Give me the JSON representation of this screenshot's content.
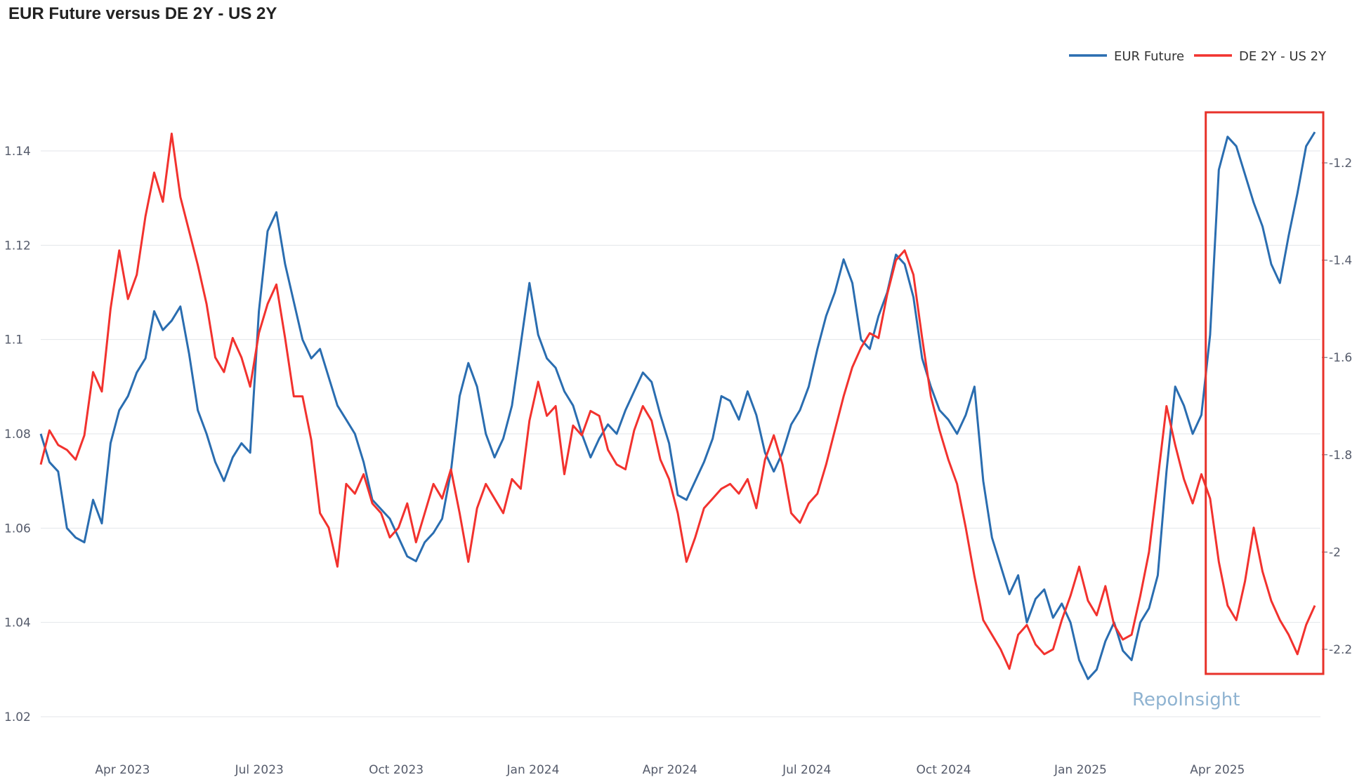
{
  "chart_data": {
    "type": "line",
    "title": "EUR Future versus DE 2Y - US 2Y",
    "xlabel": "",
    "x_ticks": [
      "Apr 2023",
      "Jul 2023",
      "Oct 2023",
      "Jan 2024",
      "Apr 2024",
      "Jul 2024",
      "Oct 2024",
      "Jan 2025",
      "Apr 2025"
    ],
    "x_range": [
      0,
      28.0
    ],
    "y_left": {
      "label": "",
      "range": [
        1.02,
        1.14
      ],
      "ticks": [
        "1.02",
        "1.04",
        "1.06",
        "1.08",
        "1.1",
        "1.12",
        "1.14"
      ]
    },
    "y_right": {
      "label": "",
      "range": [
        -2.2,
        -1.2
      ],
      "ticks": [
        "-2.2",
        "-2",
        "-1.8",
        "-1.6",
        "-1.4",
        "-1.2"
      ]
    },
    "grid": true,
    "legend": "top-right",
    "watermark": "RepoInsight",
    "highlight_box": {
      "x_from": 25.5,
      "x_to": 28.0,
      "y_right_from": -2.0,
      "y_right_to": -1.1,
      "color": "#e8322a"
    },
    "series": [
      {
        "name": "EUR Future",
        "axis": "left",
        "color": "#2a6db0",
        "points": [
          [
            0,
            1.08
          ],
          [
            0.2,
            1.074
          ],
          [
            0.4,
            1.072
          ],
          [
            0.6,
            1.06
          ],
          [
            0.8,
            1.058
          ],
          [
            1.0,
            1.057
          ],
          [
            1.2,
            1.066
          ],
          [
            1.4,
            1.061
          ],
          [
            1.6,
            1.078
          ],
          [
            1.8,
            1.085
          ],
          [
            2.0,
            1.088
          ],
          [
            2.2,
            1.093
          ],
          [
            2.4,
            1.096
          ],
          [
            2.6,
            1.106
          ],
          [
            2.8,
            1.102
          ],
          [
            3.0,
            1.104
          ],
          [
            3.2,
            1.107
          ],
          [
            3.4,
            1.097
          ],
          [
            3.6,
            1.085
          ],
          [
            3.8,
            1.08
          ],
          [
            4.0,
            1.074
          ],
          [
            4.2,
            1.07
          ],
          [
            4.4,
            1.075
          ],
          [
            4.6,
            1.078
          ],
          [
            4.8,
            1.076
          ],
          [
            5.0,
            1.106
          ],
          [
            5.2,
            1.123
          ],
          [
            5.4,
            1.127
          ],
          [
            5.6,
            1.116
          ],
          [
            5.8,
            1.108
          ],
          [
            6.0,
            1.1
          ],
          [
            6.2,
            1.096
          ],
          [
            6.4,
            1.098
          ],
          [
            6.6,
            1.092
          ],
          [
            6.8,
            1.086
          ],
          [
            7.0,
            1.083
          ],
          [
            7.2,
            1.08
          ],
          [
            7.4,
            1.074
          ],
          [
            7.6,
            1.066
          ],
          [
            7.8,
            1.064
          ],
          [
            8.0,
            1.062
          ],
          [
            8.2,
            1.058
          ],
          [
            8.4,
            1.054
          ],
          [
            8.6,
            1.053
          ],
          [
            8.8,
            1.057
          ],
          [
            9.0,
            1.059
          ],
          [
            9.2,
            1.062
          ],
          [
            9.4,
            1.072
          ],
          [
            9.6,
            1.088
          ],
          [
            9.8,
            1.095
          ],
          [
            10.0,
            1.09
          ],
          [
            10.2,
            1.08
          ],
          [
            10.4,
            1.075
          ],
          [
            10.6,
            1.079
          ],
          [
            10.8,
            1.086
          ],
          [
            11.0,
            1.099
          ],
          [
            11.2,
            1.112
          ],
          [
            11.4,
            1.101
          ],
          [
            11.6,
            1.096
          ],
          [
            11.8,
            1.094
          ],
          [
            12.0,
            1.089
          ],
          [
            12.2,
            1.086
          ],
          [
            12.4,
            1.08
          ],
          [
            12.6,
            1.075
          ],
          [
            12.8,
            1.079
          ],
          [
            13.0,
            1.082
          ],
          [
            13.2,
            1.08
          ],
          [
            13.4,
            1.085
          ],
          [
            13.6,
            1.089
          ],
          [
            13.8,
            1.093
          ],
          [
            14.0,
            1.091
          ],
          [
            14.2,
            1.084
          ],
          [
            14.4,
            1.078
          ],
          [
            14.6,
            1.067
          ],
          [
            14.8,
            1.066
          ],
          [
            15.0,
            1.07
          ],
          [
            15.2,
            1.074
          ],
          [
            15.4,
            1.079
          ],
          [
            15.6,
            1.088
          ],
          [
            15.8,
            1.087
          ],
          [
            16.0,
            1.083
          ],
          [
            16.2,
            1.089
          ],
          [
            16.4,
            1.084
          ],
          [
            16.6,
            1.076
          ],
          [
            16.8,
            1.072
          ],
          [
            17.0,
            1.076
          ],
          [
            17.2,
            1.082
          ],
          [
            17.4,
            1.085
          ],
          [
            17.6,
            1.09
          ],
          [
            17.8,
            1.098
          ],
          [
            18.0,
            1.105
          ],
          [
            18.2,
            1.11
          ],
          [
            18.4,
            1.117
          ],
          [
            18.6,
            1.112
          ],
          [
            18.8,
            1.1
          ],
          [
            19.0,
            1.098
          ],
          [
            19.2,
            1.105
          ],
          [
            19.4,
            1.11
          ],
          [
            19.6,
            1.118
          ],
          [
            19.8,
            1.116
          ],
          [
            20.0,
            1.109
          ],
          [
            20.2,
            1.096
          ],
          [
            20.4,
            1.09
          ],
          [
            20.6,
            1.085
          ],
          [
            20.8,
            1.083
          ],
          [
            21.0,
            1.08
          ],
          [
            21.2,
            1.084
          ],
          [
            21.4,
            1.09
          ],
          [
            21.6,
            1.07
          ],
          [
            21.8,
            1.058
          ],
          [
            22.0,
            1.052
          ],
          [
            22.2,
            1.046
          ],
          [
            22.4,
            1.05
          ],
          [
            22.6,
            1.04
          ],
          [
            22.8,
            1.045
          ],
          [
            23.0,
            1.047
          ],
          [
            23.2,
            1.041
          ],
          [
            23.4,
            1.044
          ],
          [
            23.6,
            1.04
          ],
          [
            23.8,
            1.032
          ],
          [
            24.0,
            1.028
          ],
          [
            24.2,
            1.03
          ],
          [
            24.4,
            1.036
          ],
          [
            24.6,
            1.04
          ],
          [
            24.8,
            1.034
          ],
          [
            25.0,
            1.032
          ],
          [
            25.2,
            1.04
          ],
          [
            25.4,
            1.043
          ],
          [
            25.6,
            1.05
          ],
          [
            25.8,
            1.072
          ],
          [
            26.0,
            1.09
          ],
          [
            26.2,
            1.086
          ],
          [
            26.4,
            1.08
          ],
          [
            26.6,
            1.084
          ],
          [
            26.8,
            1.101
          ],
          [
            27.0,
            1.136
          ],
          [
            27.2,
            1.143
          ],
          [
            27.4,
            1.141
          ],
          [
            27.6,
            1.135
          ],
          [
            27.8,
            1.129
          ],
          [
            28.0,
            1.124
          ],
          [
            28.2,
            1.116
          ],
          [
            28.4,
            1.112
          ],
          [
            28.6,
            1.122
          ],
          [
            28.8,
            1.131
          ],
          [
            29.0,
            1.141
          ],
          [
            29.2,
            1.144
          ]
        ]
      },
      {
        "name": "DE 2Y - US 2Y",
        "axis": "right",
        "color": "#f2322e",
        "points": [
          [
            0,
            -1.82
          ],
          [
            0.2,
            -1.75
          ],
          [
            0.4,
            -1.78
          ],
          [
            0.6,
            -1.79
          ],
          [
            0.8,
            -1.81
          ],
          [
            1.0,
            -1.76
          ],
          [
            1.2,
            -1.63
          ],
          [
            1.4,
            -1.67
          ],
          [
            1.6,
            -1.5
          ],
          [
            1.8,
            -1.38
          ],
          [
            2.0,
            -1.48
          ],
          [
            2.2,
            -1.43
          ],
          [
            2.4,
            -1.31
          ],
          [
            2.6,
            -1.22
          ],
          [
            2.8,
            -1.28
          ],
          [
            3.0,
            -1.14
          ],
          [
            3.2,
            -1.27
          ],
          [
            3.4,
            -1.34
          ],
          [
            3.6,
            -1.41
          ],
          [
            3.8,
            -1.49
          ],
          [
            4.0,
            -1.6
          ],
          [
            4.2,
            -1.63
          ],
          [
            4.4,
            -1.56
          ],
          [
            4.6,
            -1.6
          ],
          [
            4.8,
            -1.66
          ],
          [
            5.0,
            -1.55
          ],
          [
            5.2,
            -1.49
          ],
          [
            5.4,
            -1.45
          ],
          [
            5.6,
            -1.56
          ],
          [
            5.8,
            -1.68
          ],
          [
            6.0,
            -1.68
          ],
          [
            6.2,
            -1.77
          ],
          [
            6.4,
            -1.92
          ],
          [
            6.6,
            -1.95
          ],
          [
            6.8,
            -2.03
          ],
          [
            7.0,
            -1.86
          ],
          [
            7.2,
            -1.88
          ],
          [
            7.4,
            -1.84
          ],
          [
            7.6,
            -1.9
          ],
          [
            7.8,
            -1.92
          ],
          [
            8.0,
            -1.97
          ],
          [
            8.2,
            -1.95
          ],
          [
            8.4,
            -1.9
          ],
          [
            8.6,
            -1.98
          ],
          [
            8.8,
            -1.92
          ],
          [
            9.0,
            -1.86
          ],
          [
            9.2,
            -1.89
          ],
          [
            9.4,
            -1.83
          ],
          [
            9.6,
            -1.92
          ],
          [
            9.8,
            -2.02
          ],
          [
            10.0,
            -1.91
          ],
          [
            10.2,
            -1.86
          ],
          [
            10.4,
            -1.89
          ],
          [
            10.6,
            -1.92
          ],
          [
            10.8,
            -1.85
          ],
          [
            11.0,
            -1.87
          ],
          [
            11.2,
            -1.73
          ],
          [
            11.4,
            -1.65
          ],
          [
            11.6,
            -1.72
          ],
          [
            11.8,
            -1.7
          ],
          [
            12.0,
            -1.84
          ],
          [
            12.2,
            -1.74
          ],
          [
            12.4,
            -1.76
          ],
          [
            12.6,
            -1.71
          ],
          [
            12.8,
            -1.72
          ],
          [
            13.0,
            -1.79
          ],
          [
            13.2,
            -1.82
          ],
          [
            13.4,
            -1.83
          ],
          [
            13.6,
            -1.75
          ],
          [
            13.8,
            -1.7
          ],
          [
            14.0,
            -1.73
          ],
          [
            14.2,
            -1.81
          ],
          [
            14.4,
            -1.85
          ],
          [
            14.6,
            -1.92
          ],
          [
            14.8,
            -2.02
          ],
          [
            15.0,
            -1.97
          ],
          [
            15.2,
            -1.91
          ],
          [
            15.4,
            -1.89
          ],
          [
            15.6,
            -1.87
          ],
          [
            15.8,
            -1.86
          ],
          [
            16.0,
            -1.88
          ],
          [
            16.2,
            -1.85
          ],
          [
            16.4,
            -1.91
          ],
          [
            16.6,
            -1.81
          ],
          [
            16.8,
            -1.76
          ],
          [
            17.0,
            -1.82
          ],
          [
            17.2,
            -1.92
          ],
          [
            17.4,
            -1.94
          ],
          [
            17.6,
            -1.9
          ],
          [
            17.8,
            -1.88
          ],
          [
            18.0,
            -1.82
          ],
          [
            18.2,
            -1.75
          ],
          [
            18.4,
            -1.68
          ],
          [
            18.6,
            -1.62
          ],
          [
            18.8,
            -1.58
          ],
          [
            19.0,
            -1.55
          ],
          [
            19.2,
            -1.56
          ],
          [
            19.4,
            -1.47
          ],
          [
            19.6,
            -1.4
          ],
          [
            19.8,
            -1.38
          ],
          [
            20.0,
            -1.43
          ],
          [
            20.2,
            -1.56
          ],
          [
            20.4,
            -1.68
          ],
          [
            20.6,
            -1.75
          ],
          [
            20.8,
            -1.81
          ],
          [
            21.0,
            -1.86
          ],
          [
            21.2,
            -1.95
          ],
          [
            21.4,
            -2.05
          ],
          [
            21.6,
            -2.14
          ],
          [
            21.8,
            -2.17
          ],
          [
            22.0,
            -2.2
          ],
          [
            22.2,
            -2.24
          ],
          [
            22.4,
            -2.17
          ],
          [
            22.6,
            -2.15
          ],
          [
            22.8,
            -2.19
          ],
          [
            23.0,
            -2.21
          ],
          [
            23.2,
            -2.2
          ],
          [
            23.4,
            -2.14
          ],
          [
            23.6,
            -2.09
          ],
          [
            23.8,
            -2.03
          ],
          [
            24.0,
            -2.1
          ],
          [
            24.2,
            -2.13
          ],
          [
            24.4,
            -2.07
          ],
          [
            24.6,
            -2.15
          ],
          [
            24.8,
            -2.18
          ],
          [
            25.0,
            -2.17
          ],
          [
            25.2,
            -2.09
          ],
          [
            25.4,
            -2.0
          ],
          [
            25.6,
            -1.85
          ],
          [
            25.8,
            -1.7
          ],
          [
            26.0,
            -1.78
          ],
          [
            26.2,
            -1.85
          ],
          [
            26.4,
            -1.9
          ],
          [
            26.6,
            -1.84
          ],
          [
            26.8,
            -1.89
          ],
          [
            27.0,
            -2.02
          ],
          [
            27.2,
            -2.11
          ],
          [
            27.4,
            -2.14
          ],
          [
            27.6,
            -2.06
          ],
          [
            27.8,
            -1.95
          ],
          [
            28.0,
            -2.04
          ],
          [
            28.2,
            -2.1
          ],
          [
            28.4,
            -2.14
          ],
          [
            28.6,
            -2.17
          ],
          [
            28.8,
            -2.21
          ],
          [
            29.0,
            -2.15
          ],
          [
            29.2,
            -2.11
          ]
        ]
      }
    ]
  }
}
